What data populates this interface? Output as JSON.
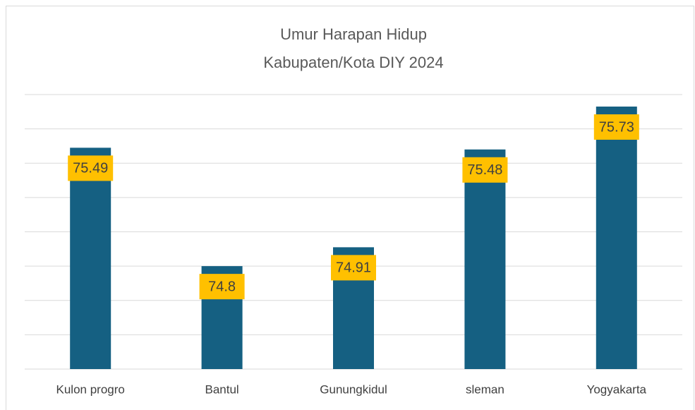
{
  "chart_data": {
    "type": "bar",
    "title": [
      "Umur Harapan Hidup",
      "Kabupaten/Kota DIY 2024"
    ],
    "categories": [
      "Kulon progro",
      "Bantul",
      "Gunungkidul",
      "sleman",
      "Yogyakarta"
    ],
    "values": [
      75.49,
      74.8,
      74.91,
      75.48,
      75.73
    ],
    "color": "#156082",
    "label_color": "#FFC000",
    "ylim": [
      74.2,
      75.8
    ],
    "yticks": [
      74.2,
      74.4,
      74.6,
      74.8,
      75,
      75.2,
      75.4,
      75.6,
      75.8
    ],
    "grid": true
  }
}
